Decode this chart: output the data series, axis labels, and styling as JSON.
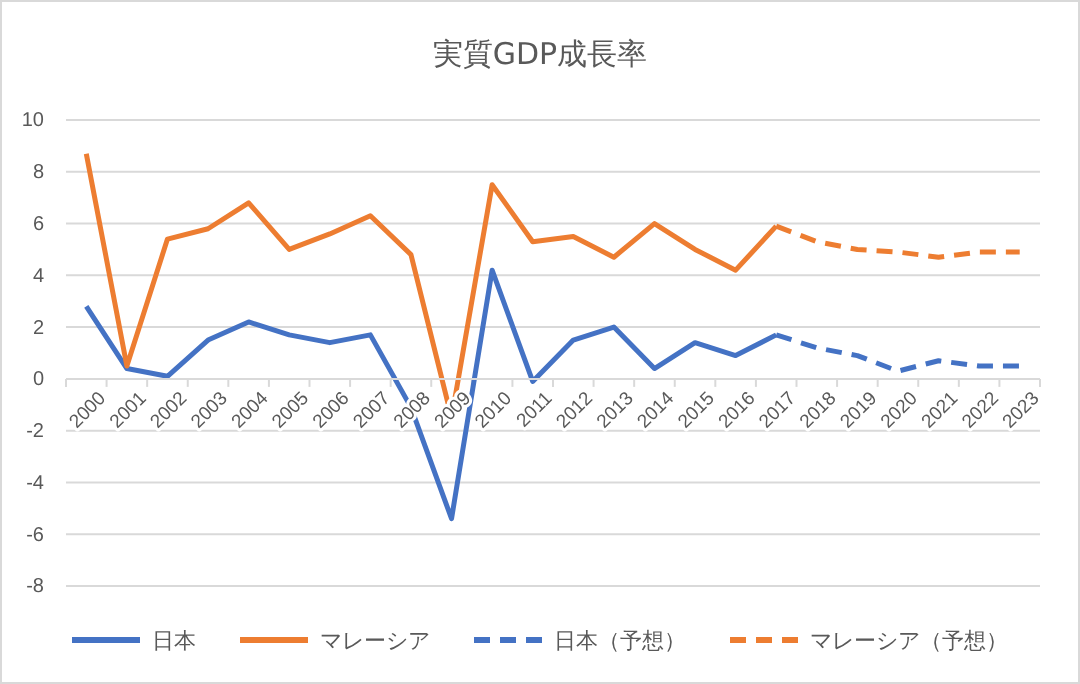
{
  "chart_data": {
    "type": "line",
    "title": "実質GDP成長率",
    "categories": [
      "2000",
      "2001",
      "2002",
      "2003",
      "2004",
      "2005",
      "2006",
      "2007",
      "2008",
      "2009",
      "2010",
      "2011",
      "2012",
      "2013",
      "2014",
      "2015",
      "2016",
      "2017",
      "2018",
      "2019",
      "2020",
      "2021",
      "2022",
      "2023"
    ],
    "series": [
      {
        "name": "日本",
        "color": "#4472c4",
        "line_style": "solid",
        "values": [
          2.8,
          0.4,
          0.1,
          1.5,
          2.2,
          1.7,
          1.4,
          1.7,
          -1.1,
          -5.4,
          4.2,
          -0.1,
          1.5,
          2.0,
          0.4,
          1.4,
          0.9,
          1.7,
          null,
          null,
          null,
          null,
          null,
          null
        ]
      },
      {
        "name": "マレーシア",
        "color": "#ed7d31",
        "line_style": "solid",
        "values": [
          8.7,
          0.5,
          5.4,
          5.8,
          6.8,
          5.0,
          5.6,
          6.3,
          4.8,
          -1.5,
          7.5,
          5.3,
          5.5,
          4.7,
          6.0,
          5.0,
          4.2,
          5.9,
          null,
          null,
          null,
          null,
          null,
          null
        ]
      },
      {
        "name": "日本（予想）",
        "color": "#4472c4",
        "line_style": "dashed",
        "values": [
          null,
          null,
          null,
          null,
          null,
          null,
          null,
          null,
          null,
          null,
          null,
          null,
          null,
          null,
          null,
          null,
          null,
          1.7,
          1.2,
          0.9,
          0.3,
          0.7,
          0.5,
          0.5
        ]
      },
      {
        "name": "マレーシア（予想）",
        "color": "#ed7d31",
        "line_style": "dashed",
        "values": [
          null,
          null,
          null,
          null,
          null,
          null,
          null,
          null,
          null,
          null,
          null,
          null,
          null,
          null,
          null,
          null,
          null,
          5.9,
          5.3,
          5.0,
          4.9,
          4.7,
          4.9,
          4.9
        ]
      }
    ],
    "ylim": [
      -8,
      10
    ],
    "yticks": [
      -8,
      -6,
      -4,
      -2,
      0,
      2,
      4,
      6,
      8,
      10
    ],
    "grid": "y",
    "legend": "bottom",
    "marker": "none"
  }
}
